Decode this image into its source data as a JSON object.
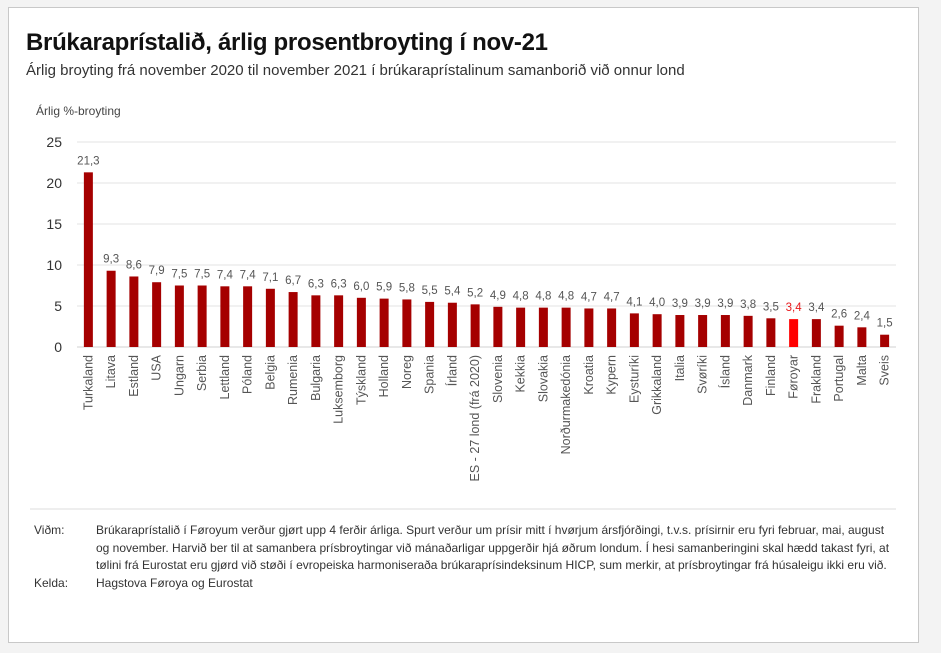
{
  "title": "Brúkaraprístalið, árlig prosentbroyting í nov-21",
  "subtitle": "Árlig broyting frá november 2020 til november 2021 í brúkaraprístalinum samanborið við onnur lond",
  "colors": {
    "bar": "#a50000",
    "highlight": "#ff0000",
    "highlight_label": "#e8191c",
    "grid": "#e3e3e3",
    "text": "#555555"
  },
  "chart_data": {
    "type": "bar",
    "title": "Brúkaraprístalið, árlig prosentbroyting í nov-21",
    "xlabel": "",
    "ylabel": "Árlig %-broyting",
    "ylim": [
      0,
      25
    ],
    "yticks": [
      0,
      5,
      10,
      15,
      20,
      25
    ],
    "grid": true,
    "highlight_category": "Føroyar",
    "categories": [
      "Turkaland",
      "Litava",
      "Estland",
      "USA",
      "Ungarn",
      "Serbia",
      "Lettland",
      "Póland",
      "Belgia",
      "Rumenia",
      "Bulgaria",
      "Luksemborg",
      "Týskland",
      "Holland",
      "Noreg",
      "Spania",
      "Írland",
      "ES - 27 lond (frá 2020)",
      "Slovenia",
      "Kekkia",
      "Slovakia",
      "Norðurmakedónia",
      "Kroatia",
      "Kypern",
      "Eysturíki",
      "Grikkaland",
      "Italia",
      "Svøríki",
      "Ísland",
      "Danmark",
      "Finland",
      "Føroyar",
      "Frakland",
      "Portugal",
      "Malta",
      "Sveis"
    ],
    "values": [
      21.3,
      9.3,
      8.6,
      7.9,
      7.5,
      7.5,
      7.4,
      7.4,
      7.1,
      6.7,
      6.3,
      6.3,
      6.0,
      5.9,
      5.8,
      5.5,
      5.4,
      5.2,
      4.9,
      4.8,
      4.8,
      4.8,
      4.7,
      4.7,
      4.1,
      4.0,
      3.9,
      3.9,
      3.9,
      3.8,
      3.5,
      3.4,
      3.4,
      2.6,
      2.4,
      1.5
    ],
    "value_labels": [
      "21,3",
      "9,3",
      "8,6",
      "7,9",
      "7,5",
      "7,5",
      "7,4",
      "7,4",
      "7,1",
      "6,7",
      "6,3",
      "6,3",
      "6,0",
      "5,9",
      "5,8",
      "5,5",
      "5,4",
      "5,2",
      "4,9",
      "4,8",
      "4,8",
      "4,8",
      "4,7",
      "4,7",
      "4,1",
      "4,0",
      "3,9",
      "3,9",
      "3,9",
      "3,8",
      "3,5",
      "3,4",
      "3,4",
      "2,6",
      "2,4",
      "1,5"
    ]
  },
  "notes": {
    "note_key": "Viðm:",
    "note_text": "Brúkaraprístalið í Føroyum verður gjørt upp 4 ferðir árliga. Spurt verður um prísir mitt í hvørjum ársfjórðingi, t.v.s. prísirnir eru fyri februar, mai, august og november. Harvið ber til at samanbera prísbroytingar við mánaðarligar uppgerðir hjá øðrum londum. Í hesi samanberingini skal hædd takast fyri, at tølini frá Eurostat eru gjørd við støði í evropeiska harmoniseraða brúkaraprísindeksinum HICP, sum merkir, at prísbroytingar frá húsaleigu ikki eru við.",
    "source_key": "Kelda:",
    "source_text": "Hagstova Føroya og Eurostat"
  }
}
